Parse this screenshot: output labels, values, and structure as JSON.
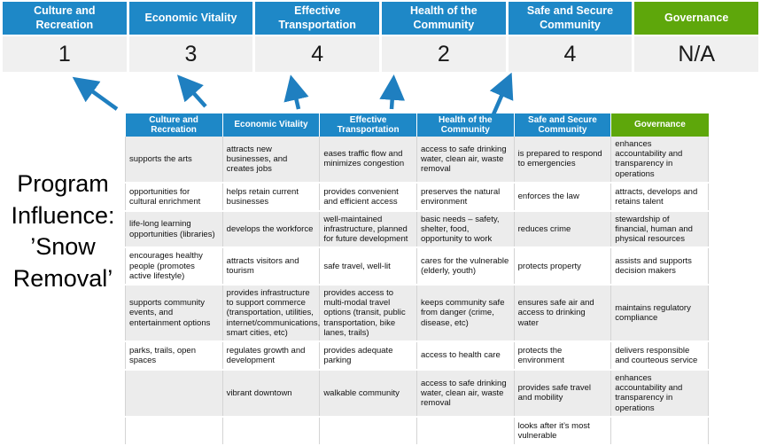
{
  "program_title": "Program Influence: ’Snow Removal’",
  "colors": {
    "category_blue": "#1E88C7",
    "governance_green": "#5EA70B",
    "highlight_yellow": "#FCFA9D",
    "arrow_blue": "#1F7FC0"
  },
  "categories": [
    {
      "label": "Culture and Recreation",
      "score": "1"
    },
    {
      "label": "Economic Vitality",
      "score": "3"
    },
    {
      "label": "Effective Transportation",
      "score": "4"
    },
    {
      "label": "Health of the Community",
      "score": "2"
    },
    {
      "label": "Safe and Secure Community",
      "score": "4"
    },
    {
      "label": "Governance",
      "score": "N/A"
    }
  ],
  "matrix": {
    "headers": [
      "Culture and Recreation",
      "Economic Vitality",
      "Effective Transportation",
      "Health of the Community",
      "Safe and Secure Community",
      "Governance"
    ],
    "rows": [
      {
        "cells": [
          {
            "text": "supports the arts",
            "highlight": false
          },
          {
            "text": "attracts new businesses, and creates jobs",
            "highlight": false
          },
          {
            "text": "eases traffic flow and minimizes congestion",
            "highlight": true
          },
          {
            "text": "access to safe drinking water, clean air, waste removal",
            "highlight": false
          },
          {
            "text": "is prepared to respond to emergencies",
            "highlight": true
          },
          {
            "text": "enhances accountability and transparency in operations",
            "highlight": false
          }
        ]
      },
      {
        "cells": [
          {
            "text": "opportunities for cultural enrichment",
            "highlight": false
          },
          {
            "text": "helps retain current businesses",
            "highlight": true
          },
          {
            "text": "provides convenient and efficient access",
            "highlight": true
          },
          {
            "text": "preserves the natural environment",
            "highlight": false
          },
          {
            "text": "enforces the law",
            "highlight": false
          },
          {
            "text": "attracts, develops and retains talent",
            "highlight": false
          }
        ]
      },
      {
        "cells": [
          {
            "text": "life-long learning opportunities (libraries)",
            "highlight": false
          },
          {
            "text": "develops the workforce",
            "highlight": false
          },
          {
            "text": "well-maintained infrastructure, planned for future development",
            "highlight": false
          },
          {
            "text": "basic needs – safety, shelter, food, opportunity to work",
            "highlight": true
          },
          {
            "text": "reduces crime",
            "highlight": false
          },
          {
            "text": "stewardship of financial, human and physical resources",
            "highlight": false
          }
        ]
      },
      {
        "cells": [
          {
            "text": "encourages healthy people (promotes active lifestyle)",
            "highlight": false
          },
          {
            "text": "attracts visitors and tourism",
            "highlight": false
          },
          {
            "text": "safe travel, well-lit",
            "highlight": true
          },
          {
            "text": "cares for the vulnerable (elderly, youth)",
            "highlight": true
          },
          {
            "text": "protects property",
            "highlight": true
          },
          {
            "text": "assists and supports decision makers",
            "highlight": false
          }
        ]
      },
      {
        "cells": [
          {
            "text": "supports community events, and entertainment options",
            "highlight": false
          },
          {
            "text": "provides infrastructure to support commerce (transportation, utilities, internet/communications, smart cities, etc)",
            "highlight": true
          },
          {
            "text": "provides access to multi-modal travel options (transit, public transportation, bike lanes, trails)",
            "highlight": true
          },
          {
            "text": "keeps community safe from danger (crime, disease, etc)",
            "highlight": true
          },
          {
            "text": "ensures safe air and access to drinking water",
            "highlight": false
          },
          {
            "text": "maintains regulatory compliance",
            "highlight": false
          }
        ]
      },
      {
        "cells": [
          {
            "text": "parks, trails, open spaces",
            "highlight": true
          },
          {
            "text": "regulates growth and development",
            "highlight": false
          },
          {
            "text": "provides adequate parking",
            "highlight": false
          },
          {
            "text": "access to health care",
            "highlight": false
          },
          {
            "text": "protects the environment",
            "highlight": false
          },
          {
            "text": "delivers responsible and courteous service",
            "highlight": false
          }
        ]
      },
      {
        "cells": [
          {
            "text": "",
            "highlight": false
          },
          {
            "text": "vibrant downtown",
            "highlight": false
          },
          {
            "text": "walkable community",
            "highlight": false
          },
          {
            "text": "access to safe drinking water, clean air, waste removal",
            "highlight": false
          },
          {
            "text": "provides safe travel and mobility",
            "highlight": true
          },
          {
            "text": "enhances accountability and transparency in operations",
            "highlight": false
          }
        ]
      },
      {
        "cells": [
          {
            "text": "",
            "highlight": false
          },
          {
            "text": "",
            "highlight": false
          },
          {
            "text": "",
            "highlight": false
          },
          {
            "text": "",
            "highlight": false
          },
          {
            "text": "looks after it’s most vulnerable",
            "highlight": true
          },
          {
            "text": "",
            "highlight": false
          }
        ]
      }
    ]
  }
}
